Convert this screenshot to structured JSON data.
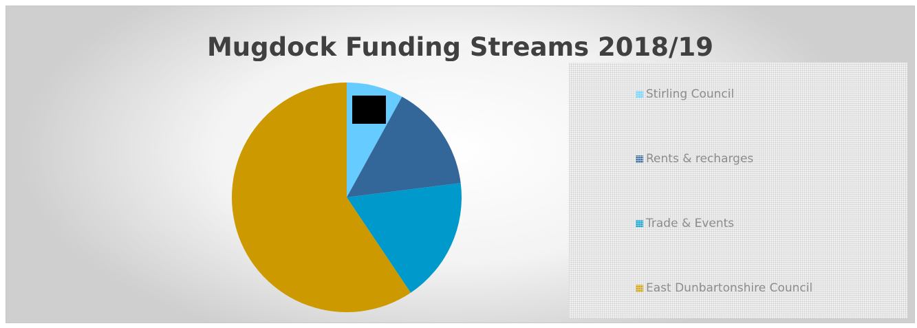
{
  "chart_data": {
    "type": "pie",
    "title": "Mugdock Funding Streams 2018/19",
    "categories": [
      "Stirling Council",
      "Rents & recharges",
      "Trade & Events",
      "East Dunbartonshire Council"
    ],
    "values": [
      8,
      15,
      17.6,
      59.4
    ],
    "colors": [
      "#66ccff",
      "#336699",
      "#0099cc",
      "#cc9900"
    ],
    "legend_position": "right"
  }
}
